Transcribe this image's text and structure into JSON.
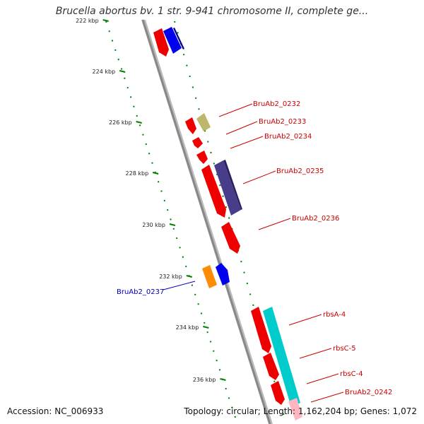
{
  "title": "Brucella abortus bv. 1 str. 9-941 chromosome II, complete ge...",
  "footer": {
    "accession": "Accession: NC_006933",
    "topology": "Topology: circular; Length: 1,162,204 bp; Genes: 1,072"
  },
  "ticks": [
    "222 kbp",
    "224 kbp",
    "226 kbp",
    "228 kbp",
    "230 kbp",
    "232 kbp",
    "234 kbp",
    "236 kbp"
  ],
  "gene_labels": [
    {
      "text": "BruAb2_0232",
      "color": "#cc0000"
    },
    {
      "text": "BruAb2_0233",
      "color": "#cc0000"
    },
    {
      "text": "BruAb2_0234",
      "color": "#cc0000"
    },
    {
      "text": "BruAb2_0235",
      "color": "#cc0000"
    },
    {
      "text": "BruAb2_0236",
      "color": "#cc0000"
    },
    {
      "text": "BruAb2_0237",
      "color": "#0000bb"
    },
    {
      "text": "rbsA-4",
      "color": "#cc0000"
    },
    {
      "text": "rbsC-5",
      "color": "#cc0000"
    },
    {
      "text": "rbsC-4",
      "color": "#cc0000"
    },
    {
      "text": "BruAb2_0242",
      "color": "#cc0000"
    }
  ],
  "colors": {
    "cds": "#ee0000",
    "blue_feature": "#0000ee",
    "khaki_feature": "#bdb76b",
    "slate_feature": "#483d8b",
    "orange_feature": "#ff8c00",
    "cyan_feature": "#00cccc",
    "pink_feature": "#ffb6c1",
    "backbone": "#888888",
    "tick": "#008000"
  }
}
